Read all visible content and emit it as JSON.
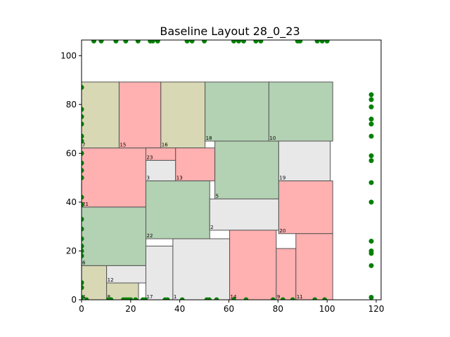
{
  "chart_data": {
    "type": "scatter",
    "title": "Baseline Layout 28_0_23",
    "xlabel": "",
    "ylabel": "",
    "xlim": [
      0,
      122
    ],
    "ylim": [
      0,
      106.4
    ],
    "xticks": [
      0,
      20,
      40,
      60,
      80,
      100,
      120
    ],
    "yticks": [
      0,
      20,
      40,
      60,
      80,
      100
    ],
    "grid": false,
    "colors": {
      "tan": "#d8d8b4",
      "pink": "#ffb0b0",
      "green": "#b3d1b3",
      "gray": "#e8e8e8",
      "edge": "#555555",
      "point": "#008000"
    },
    "rectangles": [
      {
        "id": "4",
        "x": 0,
        "y": 0,
        "w": 10.2,
        "h": 14,
        "color": "tan"
      },
      {
        "id": "8",
        "x": 10.2,
        "y": 0,
        "w": 13,
        "h": 6.9,
        "color": "tan"
      },
      {
        "id": "12",
        "x": 10.2,
        "y": 6.9,
        "w": 16,
        "h": 7.1,
        "color": "gray"
      },
      {
        "id": "6",
        "x": 0,
        "y": 14,
        "w": 26.2,
        "h": 24,
        "color": "green"
      },
      {
        "id": "21",
        "x": 0,
        "y": 38,
        "w": 26.2,
        "h": 24.2,
        "color": "pink"
      },
      {
        "id": "7",
        "x": 0,
        "y": 62.2,
        "w": 15.3,
        "h": 27,
        "color": "tan"
      },
      {
        "id": "15",
        "x": 15.3,
        "y": 62.2,
        "w": 17,
        "h": 27,
        "color": "pink"
      },
      {
        "id": "16",
        "x": 32.3,
        "y": 62.2,
        "w": 18,
        "h": 27,
        "color": "tan"
      },
      {
        "id": "18",
        "x": 50.3,
        "y": 65,
        "w": 26,
        "h": 24.2,
        "color": "green"
      },
      {
        "id": "10",
        "x": 76.3,
        "y": 65,
        "w": 26,
        "h": 24.2,
        "color": "green"
      },
      {
        "id": "23",
        "x": 26.2,
        "y": 57.1,
        "w": 12.1,
        "h": 5.1,
        "color": "pink"
      },
      {
        "id": "3",
        "x": 26.2,
        "y": 48.7,
        "w": 12.1,
        "h": 8.4,
        "color": "gray"
      },
      {
        "id": "13",
        "x": 38.3,
        "y": 48.7,
        "w": 16,
        "h": 13.5,
        "color": "pink"
      },
      {
        "id": "5",
        "x": 54.3,
        "y": 41.3,
        "w": 26,
        "h": 23.7,
        "color": "green"
      },
      {
        "id": "19",
        "x": 80.3,
        "y": 48.7,
        "w": 21,
        "h": 16.3,
        "color": "gray"
      },
      {
        "id": "22",
        "x": 26.2,
        "y": 25,
        "w": 26,
        "h": 23.7,
        "color": "green"
      },
      {
        "id": "2",
        "x": 52.2,
        "y": 28.5,
        "w": 28.1,
        "h": 12.8,
        "color": "gray"
      },
      {
        "id": "20",
        "x": 80.3,
        "y": 27.1,
        "w": 22,
        "h": 21.6,
        "color": "pink"
      },
      {
        "id": "17",
        "x": 26.2,
        "y": 0,
        "w": 11,
        "h": 22,
        "color": "gray"
      },
      {
        "id": "1",
        "x": 37.2,
        "y": 0,
        "w": 23.1,
        "h": 25,
        "color": "gray"
      },
      {
        "id": "14",
        "x": 60.3,
        "y": 0,
        "w": 19,
        "h": 28.5,
        "color": "pink"
      },
      {
        "id": "9",
        "x": 79.3,
        "y": 0,
        "w": 8,
        "h": 21,
        "color": "pink"
      },
      {
        "id": "11",
        "x": 87.3,
        "y": 0,
        "w": 15,
        "h": 27.1,
        "color": "pink"
      }
    ],
    "points": [
      [
        0,
        87
      ],
      [
        0,
        78
      ],
      [
        0,
        75
      ],
      [
        0,
        72
      ],
      [
        0,
        67
      ],
      [
        0,
        65
      ],
      [
        0,
        60
      ],
      [
        0,
        56
      ],
      [
        0,
        53
      ],
      [
        0,
        50
      ],
      [
        0,
        42
      ],
      [
        0,
        39
      ],
      [
        0,
        33
      ],
      [
        0,
        29
      ],
      [
        0,
        25
      ],
      [
        0,
        22
      ],
      [
        0,
        20
      ],
      [
        0,
        18
      ],
      [
        0,
        7
      ],
      [
        0,
        5
      ],
      [
        0,
        1
      ],
      [
        5,
        106
      ],
      [
        8,
        106
      ],
      [
        14,
        106
      ],
      [
        18,
        106
      ],
      [
        23,
        106
      ],
      [
        28,
        106
      ],
      [
        29,
        106
      ],
      [
        31,
        106
      ],
      [
        43,
        106
      ],
      [
        45,
        106
      ],
      [
        50,
        106
      ],
      [
        62,
        106
      ],
      [
        64,
        106
      ],
      [
        66,
        106
      ],
      [
        71,
        106
      ],
      [
        73,
        106
      ],
      [
        88,
        106
      ],
      [
        89,
        106
      ],
      [
        96,
        106
      ],
      [
        98,
        106
      ],
      [
        100,
        106
      ],
      [
        118,
        84
      ],
      [
        118,
        82
      ],
      [
        118,
        79
      ],
      [
        118,
        74
      ],
      [
        118,
        72
      ],
      [
        118,
        67
      ],
      [
        118,
        59
      ],
      [
        118,
        57
      ],
      [
        118,
        48
      ],
      [
        118,
        40
      ],
      [
        118,
        24
      ],
      [
        118,
        20
      ],
      [
        118,
        19
      ],
      [
        118,
        14
      ],
      [
        118,
        1
      ],
      [
        2,
        0
      ],
      [
        11,
        0
      ],
      [
        12,
        0
      ],
      [
        17,
        0
      ],
      [
        18,
        0
      ],
      [
        19,
        0
      ],
      [
        20,
        0
      ],
      [
        22,
        0
      ],
      [
        25,
        0
      ],
      [
        26,
        0
      ],
      [
        34,
        0
      ],
      [
        35,
        0
      ],
      [
        41,
        0
      ],
      [
        51,
        0
      ],
      [
        52,
        0
      ],
      [
        55,
        0
      ],
      [
        62,
        0
      ],
      [
        67,
        0
      ],
      [
        78,
        0
      ],
      [
        82,
        0
      ],
      [
        86,
        0
      ],
      [
        95,
        0
      ],
      [
        99,
        0
      ]
    ]
  }
}
